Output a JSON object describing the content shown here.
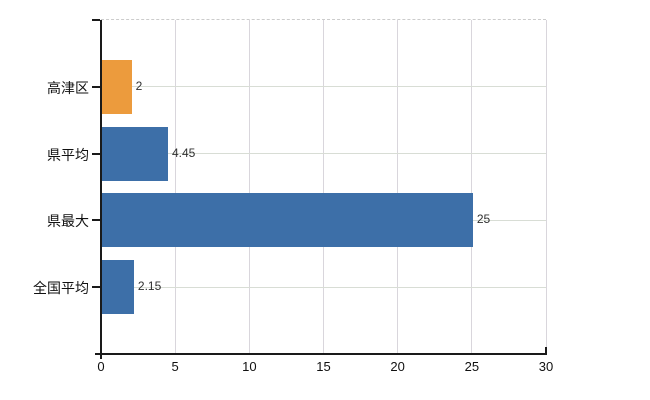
{
  "chart_data": {
    "type": "bar",
    "orientation": "horizontal",
    "title": "",
    "xlabel": "",
    "ylabel": "",
    "categories": [
      "高津区",
      "県平均",
      "県最大",
      "全国平均"
    ],
    "values": [
      2,
      4.45,
      25,
      2.15
    ],
    "value_labels": [
      "2",
      "4.45",
      "25",
      "2.15"
    ],
    "bar_colors": [
      "#ec9b3d",
      "#3d6fa8",
      "#3d6fa8",
      "#3d6fa8"
    ],
    "xlim": [
      0,
      30
    ],
    "xticks": [
      0,
      5,
      10,
      15,
      20,
      25,
      30
    ],
    "xtick_labels": [
      "0",
      "5",
      "10",
      "15",
      "20",
      "25",
      "30"
    ],
    "grid": true,
    "legend": false,
    "colors": {
      "axis": "#1a1a1a",
      "h_gridline": "#d8ddd5",
      "v_gridline": "#d9d6dc",
      "top_border": "#cccccc",
      "value_text": "#303030",
      "label_text": "#111111",
      "background": "#ffffff"
    }
  }
}
